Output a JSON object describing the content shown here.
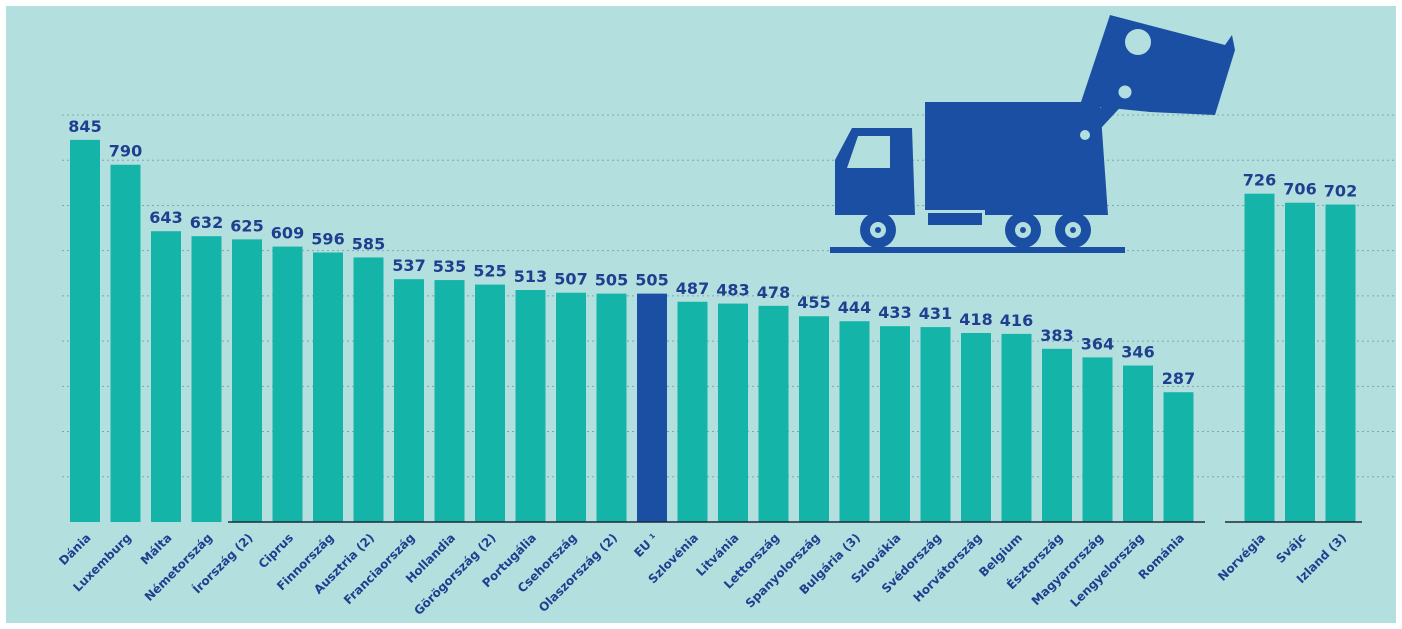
{
  "chart_data": {
    "type": "bar",
    "categories": [
      "Dánia",
      "Luxemburg",
      "Málta",
      "Németország",
      "Írország (2)",
      "Ciprus",
      "Finnország",
      "Ausztria (2)",
      "Franciaország",
      "Hollandia",
      "Görögország (2)",
      "Portugália",
      "Csehország",
      "Olaszország (2)",
      "EU ¹",
      "Szlovénia",
      "Litvánia",
      "Lettország",
      "Spanyolország",
      "Bulgária (3)",
      "Szlovákia",
      "Svédország",
      "Horvátország",
      "Belgium",
      "Észtország",
      "Magyarország",
      "Lengyelország",
      "Románia",
      null,
      "Norvégia",
      "Svájc",
      "Izland (3)"
    ],
    "values": [
      845,
      790,
      643,
      632,
      625,
      609,
      596,
      585,
      537,
      535,
      525,
      513,
      507,
      505,
      505,
      487,
      483,
      478,
      455,
      444,
      433,
      431,
      418,
      416,
      383,
      364,
      346,
      287,
      null,
      726,
      706,
      702
    ],
    "color": "#14b5a8",
    "highlight_color": "#1a4fa3",
    "highlight_category": "EU ¹",
    "ylim": [
      0,
      900
    ],
    "gridlines": [
      100,
      200,
      300,
      400,
      500,
      600,
      700,
      800,
      900
    ]
  }
}
